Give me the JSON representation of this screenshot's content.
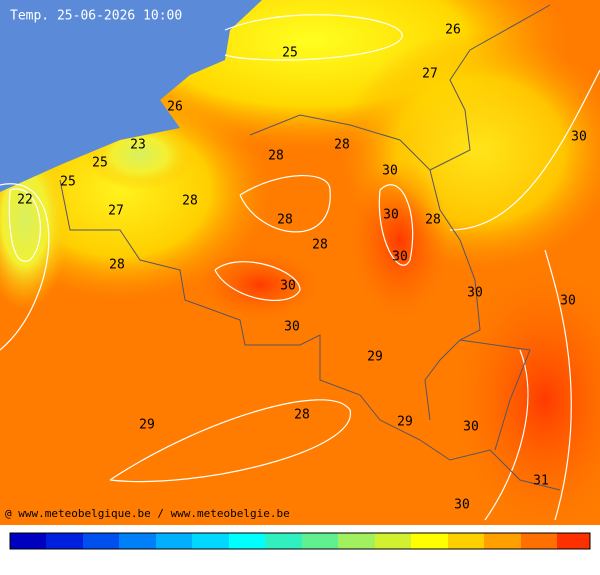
{
  "header": {
    "title": "Temp. 25-06-2026 10:00"
  },
  "labels": [
    25,
    26,
    27,
    26,
    23,
    25,
    25,
    22,
    28,
    28,
    30,
    30,
    28,
    27,
    28,
    28,
    28,
    30,
    28,
    30,
    30,
    30,
    30,
    30,
    29,
    29,
    28,
    29,
    30,
    31,
    30
  ],
  "credit": "@ www.meteobelgique.be / www.meteobelgie.be"
}
